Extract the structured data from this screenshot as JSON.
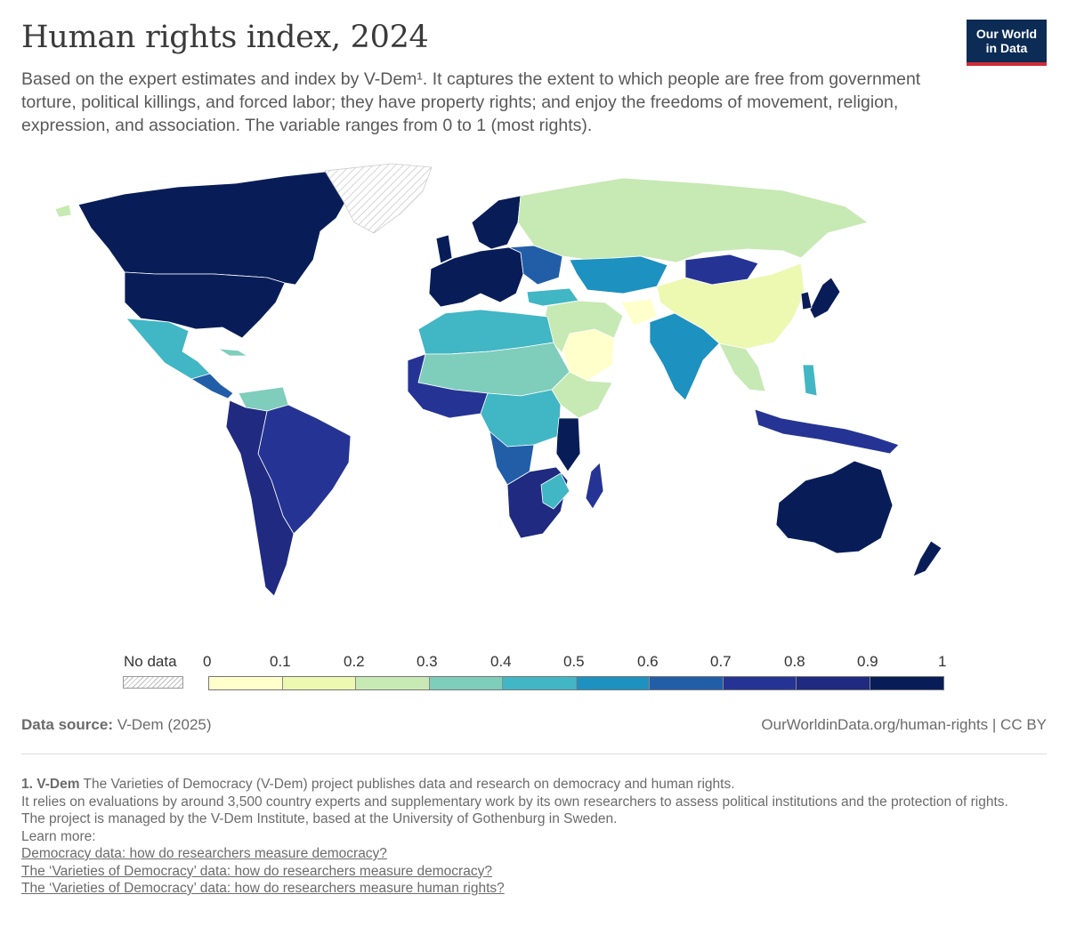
{
  "header": {
    "title": "Human rights index, 2024",
    "subtitle": "Based on the expert estimates and index by V-Dem¹. It captures the extent to which people are free from government torture, political killings, and forced labor; they have property rights; and enjoy the freedoms of movement, religion, expression, and association. The variable ranges from 0 to 1 (most rights).",
    "logo_line1": "Our World",
    "logo_line2": "in Data"
  },
  "map_data": {
    "type": "choropleth",
    "variable": "Human rights index",
    "year": 2024,
    "regions": [
      {
        "id": "canada",
        "value_bin": "0.9-1"
      },
      {
        "id": "usa",
        "value_bin": "0.9-1"
      },
      {
        "id": "mexico",
        "value_bin": "0.4-0.5"
      },
      {
        "id": "greenland",
        "value_bin": "no data"
      },
      {
        "id": "south-america",
        "value_bin": "0.8-0.9"
      },
      {
        "id": "venezuela",
        "value_bin": "0.3-0.4"
      },
      {
        "id": "europe",
        "value_bin": "0.9-1"
      },
      {
        "id": "russia",
        "value_bin": "0.2-0.3"
      },
      {
        "id": "kazakhstan",
        "value_bin": "0.5-0.6"
      },
      {
        "id": "mongolia",
        "value_bin": "0.8-0.9"
      },
      {
        "id": "china",
        "value_bin": "0.1-0.2"
      },
      {
        "id": "india",
        "value_bin": "0.5-0.6"
      },
      {
        "id": "middle-east",
        "value_bin": "0.2-0.3"
      },
      {
        "id": "north-africa",
        "value_bin": "0.3-0.4"
      },
      {
        "id": "west-africa",
        "value_bin": "0.6-0.8"
      },
      {
        "id": "central-africa",
        "value_bin": "0.4-0.5"
      },
      {
        "id": "southern-africa",
        "value_bin": "0.8-0.9"
      },
      {
        "id": "madagascar",
        "value_bin": "0.7-0.8"
      },
      {
        "id": "southeast-asia",
        "value_bin": "0.2-0.3"
      },
      {
        "id": "indonesia",
        "value_bin": "0.7-0.8"
      },
      {
        "id": "japan",
        "value_bin": "0.9-1"
      },
      {
        "id": "australia",
        "value_bin": "0.9-1"
      },
      {
        "id": "new-zealand",
        "value_bin": "0.9-1"
      }
    ]
  },
  "legend": {
    "no_data_label": "No data",
    "ticks": [
      "0",
      "0.1",
      "0.2",
      "0.3",
      "0.4",
      "0.5",
      "0.6",
      "0.7",
      "0.8",
      "0.9",
      "1"
    ],
    "colors": [
      "#ffffcc",
      "#edf8b1",
      "#c7e9b4",
      "#7fcdbb",
      "#41b6c4",
      "#1d91c0",
      "#225ea8",
      "#253494",
      "#1f2a80",
      "#081d58"
    ]
  },
  "footer": {
    "source_label": "Data source:",
    "source_value": "V-Dem (2025)",
    "url": "OurWorldinData.org/human-rights | CC BY"
  },
  "footnote": {
    "label": "1. V-Dem",
    "line1": "The Varieties of Democracy (V-Dem) project publishes data and research on democracy and human rights.",
    "line2": "It relies on evaluations by around 3,500 country experts and supplementary work by its own researchers to assess political institutions and the protection of rights.",
    "line3": "The project is managed by the V-Dem Institute, based at the University of Gothenburg in Sweden.",
    "learn_more": "Learn more:",
    "links": [
      "Democracy data: how do researchers measure democracy?",
      "The ‘Varieties of Democracy’ data: how do researchers measure democracy?",
      "The ‘Varieties of Democracy’ data: how do researchers measure human rights?"
    ]
  }
}
